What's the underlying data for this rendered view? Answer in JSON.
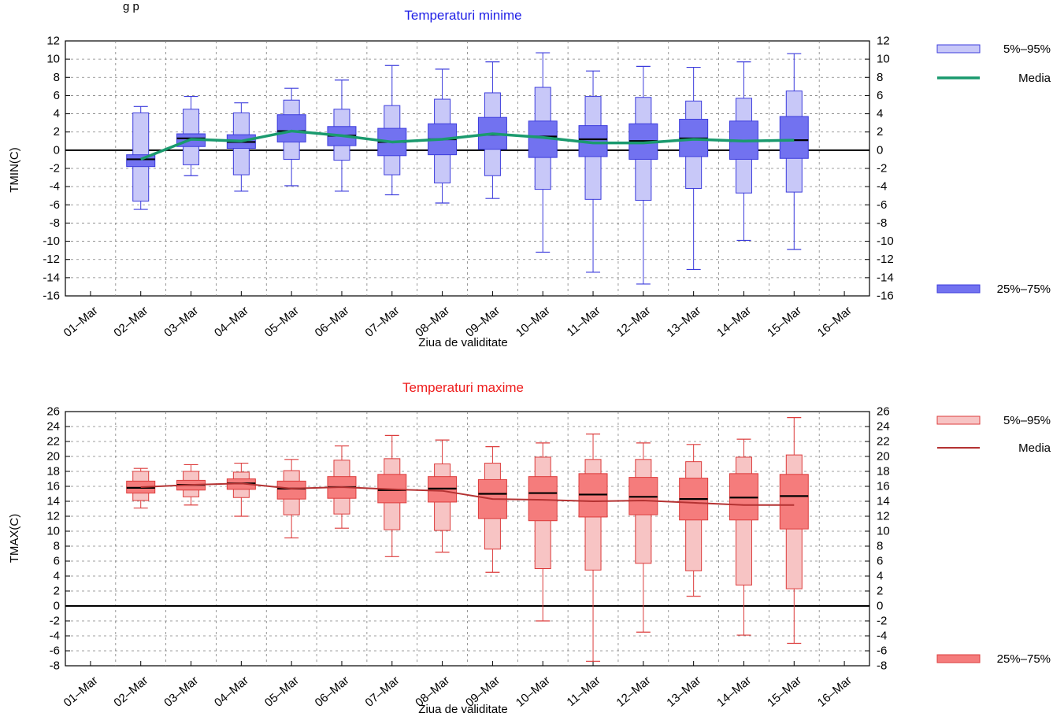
{
  "header": {
    "partial_text": "g          p"
  },
  "colors": {
    "min_box_outer": "#c8c8f8",
    "min_box_inner": "#7272f0",
    "min_stroke": "#3c3cdc",
    "min_mean": "#1a9a6e",
    "min_title": "#1f1fe6",
    "max_box_outer": "#f7c4c4",
    "max_box_inner": "#f57c7c",
    "max_stroke": "#dc3c3c",
    "max_mean": "#b43232",
    "max_title": "#ee1c1c",
    "median": "#000000",
    "grid": "#808080"
  },
  "chart_data": [
    {
      "type": "box",
      "title": "Temperaturi minime",
      "xlabel": "Ziua de validitate",
      "ylabel": "TMIN(C)",
      "ylim": [
        -16,
        12
      ],
      "y_ticks": [
        12,
        10,
        8,
        6,
        4,
        2,
        0,
        -2,
        -4,
        -6,
        -8,
        -10,
        -12,
        -14,
        -16
      ],
      "x_ticks": [
        "01–Mar",
        "02–Mar",
        "03–Mar",
        "04–Mar",
        "05–Mar",
        "06–Mar",
        "07–Mar",
        "08–Mar",
        "09–Mar",
        "10–Mar",
        "11–Mar",
        "12–Mar",
        "13–Mar",
        "14–Mar",
        "15–Mar",
        "16–Mar"
      ],
      "categories": [
        "02–Mar",
        "03–Mar",
        "04–Mar",
        "05–Mar",
        "06–Mar",
        "07–Mar",
        "08–Mar",
        "09–Mar",
        "10–Mar",
        "11–Mar",
        "12–Mar",
        "13–Mar",
        "14–Mar",
        "15–Mar"
      ],
      "whisker_low": [
        -6.5,
        -2.8,
        -4.5,
        -3.9,
        -4.5,
        -4.9,
        -5.8,
        -5.3,
        -11.2,
        -13.4,
        -14.7,
        -13.1,
        -9.9,
        -10.9
      ],
      "p5": [
        -5.6,
        -1.6,
        -2.7,
        -1.0,
        -1.1,
        -2.7,
        -3.6,
        -2.8,
        -4.3,
        -5.4,
        -5.5,
        -4.2,
        -4.7,
        -4.6
      ],
      "p25": [
        -1.8,
        0.4,
        0.2,
        0.9,
        0.5,
        -0.6,
        -0.5,
        0.1,
        -0.8,
        -0.7,
        -1.0,
        -0.7,
        -1.0,
        -0.9
      ],
      "median": [
        -1.0,
        1.3,
        0.9,
        2.1,
        1.6,
        0.9,
        1.2,
        1.7,
        1.5,
        1.2,
        1.0,
        1.3,
        1.0,
        1.1
      ],
      "p75": [
        -0.5,
        1.8,
        1.7,
        3.9,
        2.6,
        2.4,
        2.9,
        3.6,
        3.2,
        2.7,
        2.9,
        3.4,
        3.2,
        3.7
      ],
      "p95": [
        4.1,
        4.5,
        4.1,
        5.5,
        4.5,
        4.9,
        5.6,
        6.3,
        6.9,
        5.9,
        5.8,
        5.4,
        5.7,
        6.5
      ],
      "whisker_high": [
        4.8,
        5.9,
        5.2,
        6.8,
        7.7,
        9.3,
        8.9,
        9.7,
        10.7,
        8.7,
        9.2,
        9.1,
        9.7,
        10.6
      ],
      "mean": [
        -1.0,
        1.2,
        1.0,
        2.1,
        1.6,
        0.9,
        1.2,
        1.8,
        1.4,
        0.8,
        0.8,
        1.2,
        1.0,
        1.1
      ],
      "legend": [
        {
          "label": "5%–95%",
          "kind": "outer-box"
        },
        {
          "label": "Media",
          "kind": "mean-line"
        },
        {
          "label": "25%–75%",
          "kind": "inner-box"
        }
      ],
      "grid": true,
      "zero_line": true
    },
    {
      "type": "box",
      "title": "Temperaturi maxime",
      "xlabel": "Ziua de validitate",
      "ylabel": "TMAX(C)",
      "ylim": [
        -8,
        26
      ],
      "y_ticks": [
        26,
        24,
        22,
        20,
        18,
        16,
        14,
        12,
        10,
        8,
        6,
        4,
        2,
        0,
        -2,
        -4,
        -6,
        -8
      ],
      "x_ticks": [
        "01–Mar",
        "02–Mar",
        "03–Mar",
        "04–Mar",
        "05–Mar",
        "06–Mar",
        "07–Mar",
        "08–Mar",
        "09–Mar",
        "10–Mar",
        "11–Mar",
        "12–Mar",
        "13–Mar",
        "14–Mar",
        "15–Mar",
        "16–Mar"
      ],
      "categories": [
        "02–Mar",
        "03–Mar",
        "04–Mar",
        "05–Mar",
        "06–Mar",
        "07–Mar",
        "08–Mar",
        "09–Mar",
        "10–Mar",
        "11–Mar",
        "12–Mar",
        "13–Mar",
        "14–Mar",
        "15–Mar"
      ],
      "whisker_low": [
        13.1,
        13.5,
        12.0,
        9.1,
        10.4,
        6.6,
        7.2,
        4.5,
        -2.0,
        -7.4,
        -3.5,
        1.3,
        -3.9,
        -5.0
      ],
      "p5": [
        14.1,
        14.6,
        14.5,
        12.2,
        12.3,
        10.2,
        10.1,
        7.6,
        5.0,
        4.8,
        5.7,
        4.7,
        2.8,
        2.3
      ],
      "p25": [
        15.1,
        15.5,
        15.6,
        14.3,
        14.4,
        13.8,
        13.9,
        11.7,
        11.4,
        11.9,
        12.2,
        11.5,
        11.5,
        10.3
      ],
      "median": [
        15.8,
        16.2,
        16.4,
        15.7,
        15.9,
        15.5,
        15.7,
        15.0,
        15.1,
        14.9,
        14.6,
        14.3,
        14.5,
        14.7
      ],
      "p75": [
        16.7,
        16.8,
        17.0,
        16.7,
        17.3,
        17.6,
        17.3,
        16.9,
        17.3,
        17.7,
        17.2,
        17.1,
        17.7,
        17.6
      ],
      "p95": [
        18.0,
        18.0,
        17.9,
        18.1,
        19.5,
        19.7,
        19.0,
        19.1,
        19.9,
        19.6,
        19.6,
        19.3,
        19.9,
        20.2
      ],
      "whisker_high": [
        18.4,
        18.9,
        19.1,
        19.6,
        21.4,
        22.8,
        22.2,
        21.3,
        21.8,
        23.0,
        21.8,
        21.6,
        22.3,
        25.2
      ],
      "mean": [
        15.9,
        16.2,
        16.4,
        15.7,
        15.9,
        15.6,
        15.4,
        14.3,
        14.2,
        14.0,
        14.1,
        13.8,
        13.5,
        13.5
      ],
      "legend": [
        {
          "label": "5%–95%",
          "kind": "outer-box"
        },
        {
          "label": "Media",
          "kind": "mean-line"
        },
        {
          "label": "25%–75%",
          "kind": "inner-box"
        }
      ],
      "grid": true,
      "zero_line": true
    }
  ]
}
